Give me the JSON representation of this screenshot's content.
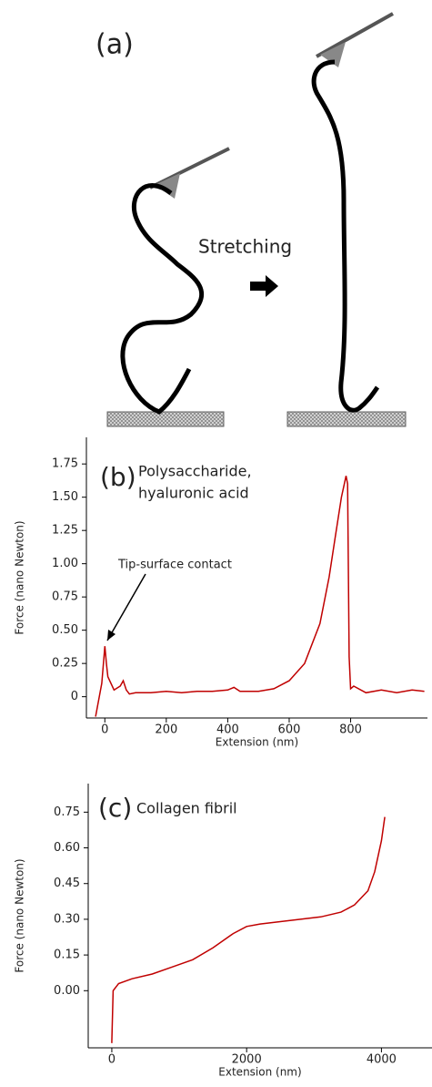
{
  "diagram": {
    "label": "(a)",
    "arrow_label": "Stretching"
  },
  "chart_data": [
    {
      "type": "line",
      "panel_label": "(b)",
      "annotations": [
        "Polysaccharide,",
        "hyaluronic acid",
        "Tip-surface contact"
      ],
      "xlabel": "Extension (nm)",
      "ylabel": "Force (nano Newton)",
      "color": "#c00000",
      "x": [
        -30,
        -10,
        0,
        5,
        10,
        20,
        30,
        50,
        60,
        70,
        80,
        100,
        150,
        200,
        250,
        300,
        350,
        400,
        420,
        440,
        500,
        550,
        600,
        650,
        700,
        730,
        750,
        770,
        785,
        790,
        795,
        800,
        810,
        850,
        900,
        950,
        1000,
        1040
      ],
      "values": [
        -0.15,
        0.1,
        0.38,
        0.25,
        0.15,
        0.1,
        0.05,
        0.08,
        0.12,
        0.05,
        0.02,
        0.03,
        0.03,
        0.04,
        0.03,
        0.04,
        0.04,
        0.05,
        0.07,
        0.04,
        0.04,
        0.06,
        0.12,
        0.25,
        0.55,
        0.9,
        1.2,
        1.5,
        1.66,
        1.6,
        0.3,
        0.06,
        0.08,
        0.03,
        0.05,
        0.03,
        0.05,
        0.04
      ],
      "xlim": [
        -60,
        1050
      ],
      "ylim": [
        -0.16,
        1.95
      ],
      "xticks": [
        0,
        200,
        400,
        600,
        800
      ],
      "yticks": [
        0,
        0.25,
        {
          "value": 0.5,
          "label": "0.50"
        },
        0.75,
        {
          "value": 1,
          "label": "1.00"
        },
        1.25,
        {
          "value": 1.5,
          "label": "1.50"
        },
        1.75
      ]
    },
    {
      "type": "line",
      "panel_label": "(c)",
      "annotations": [
        "Collagen fibril"
      ],
      "xlabel": "Extension (nm)",
      "ylabel": "Force (nano Newton)",
      "color": "#c00000",
      "x": [
        0,
        20,
        100,
        300,
        600,
        900,
        1200,
        1500,
        1800,
        2000,
        2200,
        2500,
        2800,
        3100,
        3400,
        3600,
        3800,
        3900,
        4000,
        4050
      ],
      "values": [
        -0.22,
        0.0,
        0.03,
        0.05,
        0.07,
        0.1,
        0.13,
        0.18,
        0.24,
        0.27,
        0.28,
        0.29,
        0.3,
        0.31,
        0.33,
        0.36,
        0.42,
        0.5,
        0.63,
        0.73
      ],
      "xlim": [
        -350,
        4750
      ],
      "ylim": [
        -0.24,
        0.87
      ],
      "xticks": [
        0,
        2000,
        4000
      ],
      "yticks": [
        {
          "value": 0,
          "label": "0.00"
        },
        0.15,
        {
          "value": 0.3,
          "label": "0.30"
        },
        0.45,
        {
          "value": 0.6,
          "label": "0.60"
        },
        0.75
      ]
    }
  ]
}
